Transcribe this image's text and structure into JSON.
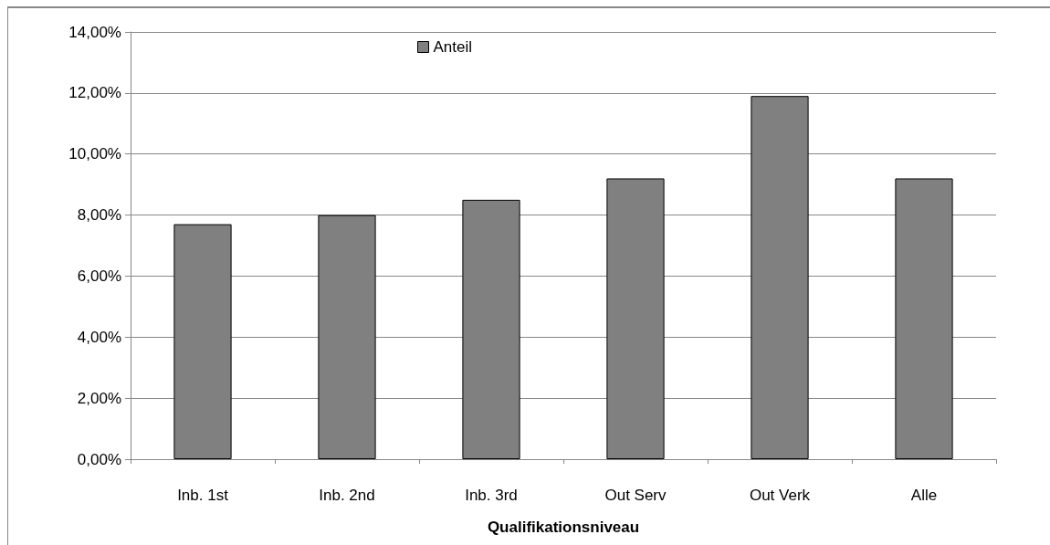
{
  "chart_data": {
    "type": "bar",
    "xlabel": "Qualifikationsniveau",
    "categories": [
      "Inb. 1st",
      "Inb. 2nd",
      "Inb. 3rd",
      "Out Serv",
      "Out Verk",
      "Alle"
    ],
    "series": [
      {
        "name": "Anteil",
        "color": "#808080",
        "values": [
          7.7,
          8.0,
          8.5,
          9.2,
          11.9,
          9.2
        ]
      }
    ],
    "ylim": [
      0,
      14
    ],
    "yticks": [
      {
        "value": 0,
        "label": "0,00%"
      },
      {
        "value": 2,
        "label": "2,00%"
      },
      {
        "value": 4,
        "label": "4,00%"
      },
      {
        "value": 6,
        "label": "6,00%"
      },
      {
        "value": 8,
        "label": "8,00%"
      },
      {
        "value": 10,
        "label": "10,00%"
      },
      {
        "value": 12,
        "label": "12,00%"
      },
      {
        "value": 14,
        "label": "14,00%"
      }
    ],
    "grid": "y",
    "legend": "top"
  }
}
